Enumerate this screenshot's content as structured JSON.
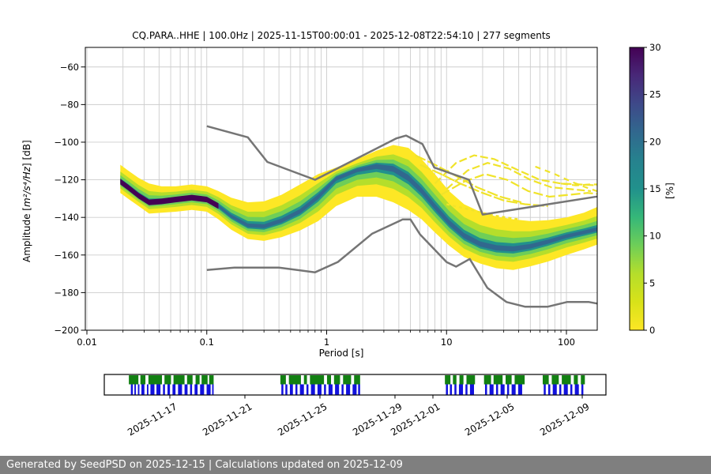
{
  "title": "CQ.PARA..HHE | 100.0Hz | 2025-11-15T00:00:01 - 2025-12-08T22:54:10 | 277 segments",
  "footer": {
    "text": "Generated by SeedPSD on 2025-12-15 | Calculations updated on 2025-12-09"
  },
  "axes": {
    "xlabel": "Period [s]",
    "ylabel_prefix": "Amplitude [",
    "ylabel_math": "m²/s⁴/Hz",
    "ylabel_suffix": "] [dB]",
    "xlim": [
      0.0097,
      181
    ],
    "ylim": [
      -200,
      -49.6
    ],
    "x_ticks": [
      {
        "v": 0.01,
        "label": "0.01"
      },
      {
        "v": 0.1,
        "label": "0.1"
      },
      {
        "v": 1,
        "label": "1"
      },
      {
        "v": 10,
        "label": "10"
      },
      {
        "v": 100,
        "label": "100"
      }
    ],
    "y_ticks": [
      {
        "v": -60,
        "label": "−60"
      },
      {
        "v": -80,
        "label": "−80"
      },
      {
        "v": -100,
        "label": "−100"
      },
      {
        "v": -120,
        "label": "−120"
      },
      {
        "v": -140,
        "label": "−140"
      },
      {
        "v": -160,
        "label": "−160"
      },
      {
        "v": -180,
        "label": "−180"
      },
      {
        "v": -200,
        "label": "−200"
      }
    ],
    "grid": true
  },
  "colorbar": {
    "label": "[%]",
    "vmin": 0,
    "vmax": 30,
    "ticks": [
      0,
      5,
      10,
      15,
      20,
      25,
      30
    ],
    "gradient": [
      [
        0.0,
        "#fde725"
      ],
      [
        0.1,
        "#d8e219"
      ],
      [
        0.2,
        "#b5de2b"
      ],
      [
        0.3,
        "#6ece58"
      ],
      [
        0.4,
        "#35b779"
      ],
      [
        0.5,
        "#21918c"
      ],
      [
        0.6,
        "#26828e"
      ],
      [
        0.7,
        "#31688e"
      ],
      [
        0.8,
        "#3e4989"
      ],
      [
        0.9,
        "#482878"
      ],
      [
        1.0,
        "#440154"
      ]
    ]
  },
  "chart_data": {
    "type": "heatmap",
    "description": "PPSD probability density vs period; profile rows are [period_s, top_dB, mode_dB, bottom_dB, dark_core]",
    "profile": [
      [
        0.019,
        -112,
        -121,
        -127,
        1
      ],
      [
        0.022,
        -115,
        -124,
        -130,
        1
      ],
      [
        0.027,
        -119,
        -128.5,
        -134,
        1
      ],
      [
        0.033,
        -122,
        -132,
        -138,
        1
      ],
      [
        0.042,
        -123.5,
        -131.5,
        -137.5,
        1
      ],
      [
        0.055,
        -123.5,
        -130.5,
        -137,
        1
      ],
      [
        0.075,
        -122.5,
        -129.5,
        -136,
        1
      ],
      [
        0.1,
        -123.5,
        -130.5,
        -137,
        1
      ],
      [
        0.125,
        -126,
        -134,
        -141,
        1
      ],
      [
        0.16,
        -129.5,
        -139.5,
        -146.5,
        0
      ],
      [
        0.22,
        -132,
        -144.5,
        -151.5,
        0
      ],
      [
        0.3,
        -131.5,
        -145,
        -152.5,
        0
      ],
      [
        0.42,
        -128,
        -142,
        -150.5,
        0
      ],
      [
        0.6,
        -122.5,
        -137,
        -147,
        0
      ],
      [
        0.85,
        -117,
        -129,
        -142,
        0
      ],
      [
        1.2,
        -113.5,
        -119,
        -134,
        0
      ],
      [
        1.8,
        -109,
        -114.5,
        -129,
        0
      ],
      [
        2.6,
        -104.5,
        -112.5,
        -129,
        0
      ],
      [
        3.6,
        -101.5,
        -114,
        -132,
        0
      ],
      [
        4.8,
        -103,
        -119,
        -136,
        0
      ],
      [
        6.2,
        -109,
        -126,
        -141,
        0
      ],
      [
        8.0,
        -117,
        -134.5,
        -148,
        0
      ],
      [
        10.5,
        -126,
        -143,
        -155,
        0
      ],
      [
        14,
        -133,
        -150,
        -161,
        0
      ],
      [
        19,
        -137,
        -154.5,
        -164.5,
        0
      ],
      [
        26,
        -139.5,
        -156.5,
        -167,
        0
      ],
      [
        36,
        -141,
        -157,
        -168,
        0
      ],
      [
        50,
        -142,
        -155.5,
        -166,
        0
      ],
      [
        70,
        -141.5,
        -153,
        -163.5,
        0
      ],
      [
        100,
        -140,
        -150,
        -160,
        0
      ],
      [
        140,
        -137.5,
        -148,
        -157,
        0
      ],
      [
        180,
        -134.5,
        -146.5,
        -154.5,
        0
      ]
    ],
    "bands": [
      {
        "color": "#fde725",
        "f": 1.0,
        "cap": 99
      },
      {
        "color": "#b5de2b",
        "f": 0.6,
        "cap": 12
      },
      {
        "color": "#6ece58",
        "f": 0.38,
        "cap": 7.5
      },
      {
        "color": "#21918c",
        "f": 0.2,
        "cap": 4.2
      },
      {
        "color": "#31688e",
        "f": 0.1,
        "cap": 2.2
      }
    ],
    "dark_core_color": "#440154",
    "dark_core_halfwidth_db": 1.5,
    "noise_models": {
      "color": "#757575",
      "nhnm": [
        [
          0.1,
          -91.5
        ],
        [
          0.22,
          -97.4
        ],
        [
          0.32,
          -110.5
        ],
        [
          0.8,
          -120
        ],
        [
          3.8,
          -98
        ],
        [
          4.6,
          -96.5
        ],
        [
          6.3,
          -101
        ],
        [
          7.9,
          -113.5
        ],
        [
          15.4,
          -120
        ],
        [
          20,
          -138.5
        ],
        [
          180,
          -128.9
        ]
      ],
      "nlnm": [
        [
          0.1,
          -168
        ],
        [
          0.17,
          -166.7
        ],
        [
          0.4,
          -166.7
        ],
        [
          0.8,
          -169.2
        ],
        [
          1.24,
          -163.7
        ],
        [
          2.4,
          -148.6
        ],
        [
          4.3,
          -141.1
        ],
        [
          5,
          -141.1
        ],
        [
          6,
          -149
        ],
        [
          10,
          -163.8
        ],
        [
          12,
          -166.2
        ],
        [
          15.6,
          -162.1
        ],
        [
          21.9,
          -177.5
        ],
        [
          31.6,
          -185
        ],
        [
          45,
          -187.5
        ],
        [
          70,
          -187.5
        ],
        [
          101,
          -185
        ],
        [
          154,
          -185
        ],
        [
          180,
          -185.8
        ]
      ]
    },
    "outlier_streaks": [
      {
        "pts": [
          [
            8,
            -122
          ],
          [
            12,
            -111
          ],
          [
            17,
            -107
          ],
          [
            25,
            -109
          ],
          [
            40,
            -115
          ],
          [
            60,
            -120
          ],
          [
            90,
            -122
          ],
          [
            130,
            -122.5
          ],
          [
            180,
            -123
          ]
        ],
        "dash": "10 4"
      },
      {
        "pts": [
          [
            10,
            -125
          ],
          [
            15,
            -115
          ],
          [
            22,
            -111
          ],
          [
            33,
            -114
          ],
          [
            50,
            -120
          ],
          [
            75,
            -124
          ],
          [
            110,
            -125
          ],
          [
            160,
            -126
          ]
        ],
        "dash": "10 4"
      },
      {
        "pts": [
          [
            9,
            -128
          ],
          [
            14,
            -121
          ],
          [
            21,
            -117
          ],
          [
            32,
            -120
          ],
          [
            48,
            -126
          ],
          [
            72,
            -129
          ],
          [
            105,
            -128
          ],
          [
            150,
            -127
          ],
          [
            180,
            -127.5
          ]
        ],
        "dash": "12 4"
      },
      {
        "pts": [
          [
            6,
            -112
          ],
          [
            9,
            -117
          ],
          [
            13,
            -122
          ],
          [
            20,
            -127
          ],
          [
            30,
            -131
          ],
          [
            45,
            -133
          ],
          [
            70,
            -134
          ]
        ],
        "dash": "14 3"
      },
      {
        "pts": [
          [
            5.5,
            -107
          ],
          [
            8,
            -112
          ],
          [
            12,
            -118
          ],
          [
            18,
            -124
          ],
          [
            28,
            -129
          ],
          [
            42,
            -132
          ]
        ],
        "dash": "14 3"
      },
      {
        "pts": [
          [
            55,
            -113
          ],
          [
            80,
            -117
          ],
          [
            110,
            -121
          ],
          [
            145,
            -124
          ],
          [
            180,
            -126
          ]
        ],
        "dash": "7 6"
      },
      {
        "pts": [
          [
            90,
            -122
          ],
          [
            120,
            -123
          ],
          [
            155,
            -122.5
          ],
          [
            180,
            -122.5
          ]
        ],
        "dash": "9 5"
      },
      {
        "pts": [
          [
            10,
            -133
          ],
          [
            16,
            -136
          ],
          [
            25,
            -139
          ],
          [
            40,
            -141
          ]
        ],
        "dash": "4 4"
      }
    ],
    "streak_color": "#f0e32a"
  },
  "timeline": {
    "green_color": "#128012",
    "blue_color": "#1212dd",
    "ticks": [
      {
        "f": 0.1307,
        "label": "2025-11-17"
      },
      {
        "f": 0.2803,
        "label": "2025-11-21"
      },
      {
        "f": 0.4299,
        "label": "2025-11-25"
      },
      {
        "f": 0.5795,
        "label": "2025-11-29"
      },
      {
        "f": 0.6551,
        "label": "2025-12-01"
      },
      {
        "f": 0.8031,
        "label": "2025-12-05"
      },
      {
        "f": 0.9528,
        "label": "2025-12-09"
      }
    ],
    "green_segments": [
      [
        0.049,
        0.068
      ],
      [
        0.072,
        0.082
      ],
      [
        0.088,
        0.115
      ],
      [
        0.12,
        0.133
      ],
      [
        0.138,
        0.16
      ],
      [
        0.165,
        0.176
      ],
      [
        0.182,
        0.19
      ],
      [
        0.194,
        0.206
      ],
      [
        0.209,
        0.218
      ],
      [
        0.351,
        0.362
      ],
      [
        0.368,
        0.392
      ],
      [
        0.398,
        0.404
      ],
      [
        0.41,
        0.438
      ],
      [
        0.444,
        0.452
      ],
      [
        0.458,
        0.47
      ],
      [
        0.476,
        0.492
      ],
      [
        0.498,
        0.51
      ],
      [
        0.679,
        0.69
      ],
      [
        0.695,
        0.702
      ],
      [
        0.708,
        0.716
      ],
      [
        0.722,
        0.739
      ],
      [
        0.757,
        0.771
      ],
      [
        0.776,
        0.794
      ],
      [
        0.8,
        0.812
      ],
      [
        0.818,
        0.838
      ],
      [
        0.874,
        0.886
      ],
      [
        0.892,
        0.906
      ],
      [
        0.912,
        0.93
      ],
      [
        0.936,
        0.944
      ],
      [
        0.95,
        0.958
      ]
    ],
    "blue_segments": [
      [
        0.053,
        0.057
      ],
      [
        0.06,
        0.063
      ],
      [
        0.067,
        0.07
      ],
      [
        0.074,
        0.08
      ],
      [
        0.085,
        0.088
      ],
      [
        0.092,
        0.1
      ],
      [
        0.104,
        0.112
      ],
      [
        0.117,
        0.121
      ],
      [
        0.126,
        0.131
      ],
      [
        0.136,
        0.142
      ],
      [
        0.147,
        0.155
      ],
      [
        0.16,
        0.166
      ],
      [
        0.171,
        0.175
      ],
      [
        0.18,
        0.186
      ],
      [
        0.191,
        0.199
      ],
      [
        0.204,
        0.212
      ],
      [
        0.215,
        0.218
      ],
      [
        0.353,
        0.357
      ],
      [
        0.361,
        0.365
      ],
      [
        0.37,
        0.376
      ],
      [
        0.381,
        0.385
      ],
      [
        0.39,
        0.398
      ],
      [
        0.403,
        0.407
      ],
      [
        0.412,
        0.42
      ],
      [
        0.425,
        0.433
      ],
      [
        0.438,
        0.442
      ],
      [
        0.447,
        0.455
      ],
      [
        0.46,
        0.468
      ],
      [
        0.473,
        0.477
      ],
      [
        0.482,
        0.49
      ],
      [
        0.495,
        0.503
      ],
      [
        0.506,
        0.51
      ],
      [
        0.681,
        0.685
      ],
      [
        0.689,
        0.693
      ],
      [
        0.698,
        0.702
      ],
      [
        0.707,
        0.715
      ],
      [
        0.72,
        0.724
      ],
      [
        0.729,
        0.737
      ],
      [
        0.759,
        0.763
      ],
      [
        0.768,
        0.776
      ],
      [
        0.781,
        0.785
      ],
      [
        0.79,
        0.798
      ],
      [
        0.803,
        0.807
      ],
      [
        0.812,
        0.82
      ],
      [
        0.825,
        0.833
      ],
      [
        0.876,
        0.88
      ],
      [
        0.885,
        0.889
      ],
      [
        0.894,
        0.902
      ],
      [
        0.907,
        0.911
      ],
      [
        0.916,
        0.924
      ],
      [
        0.929,
        0.933
      ],
      [
        0.938,
        0.946
      ],
      [
        0.951,
        0.955
      ]
    ]
  },
  "style_colors": {
    "grid": "#cdcdcd",
    "spine": "#000000",
    "footer_bg": "#7f7f7f",
    "footer_text": "#ffffff"
  }
}
